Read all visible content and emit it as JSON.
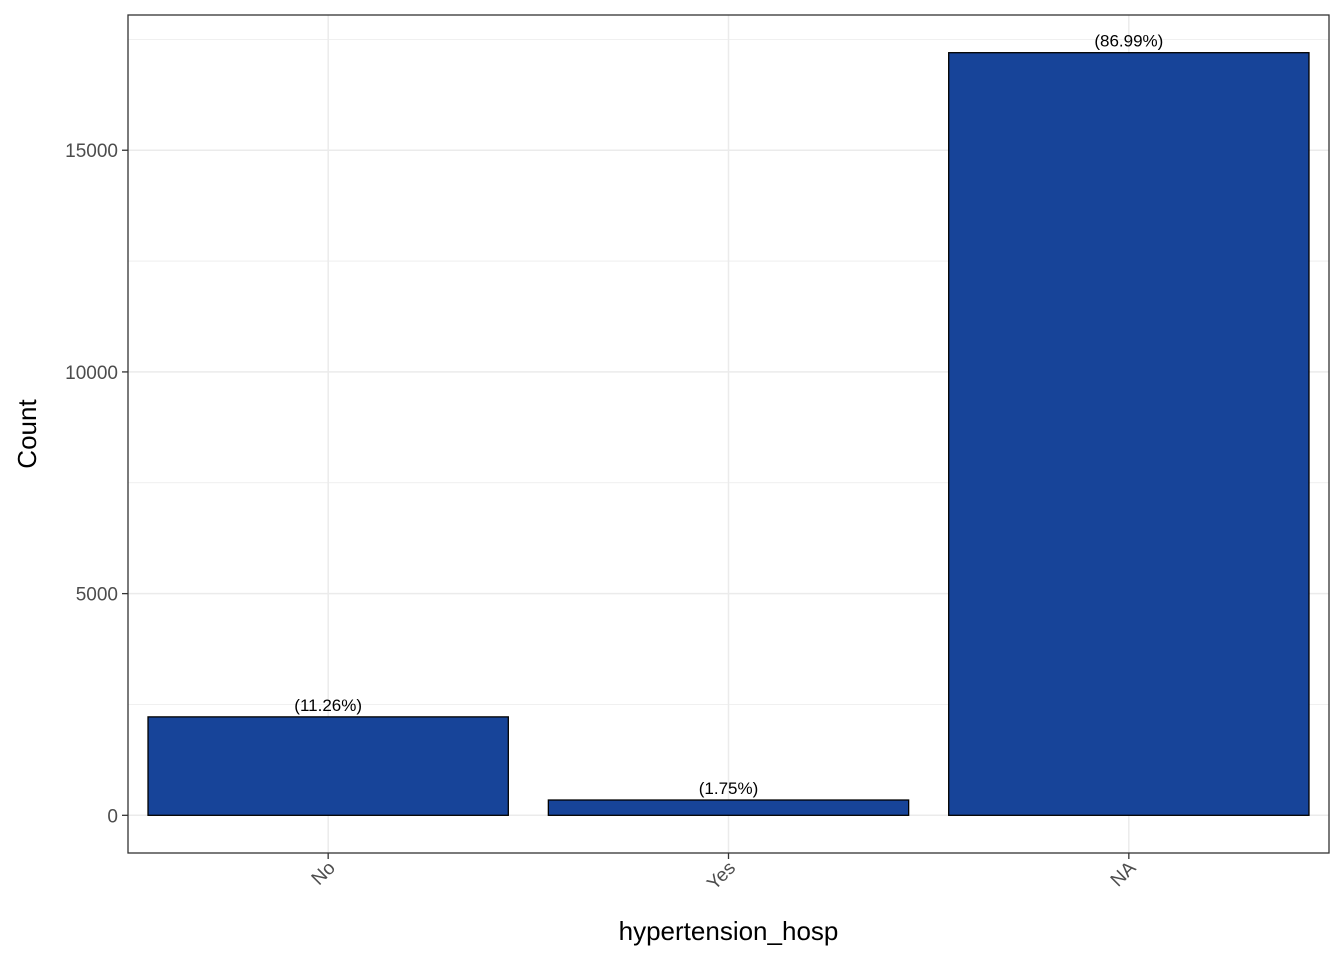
{
  "chart_data": {
    "type": "bar",
    "title": "",
    "xlabel": "hypertension_hosp",
    "ylabel": "Count",
    "categories": [
      "No",
      "Yes",
      "NA"
    ],
    "values": [
      2220,
      345,
      17200
    ],
    "data_labels": [
      "(11.26%)",
      "(1.75%)",
      "(86.99%)"
    ],
    "ylim": [
      -850,
      18050
    ],
    "yticks": [
      0,
      5000,
      10000,
      15000
    ],
    "ytick_labels": [
      "0",
      "5000",
      "10000",
      "15000"
    ],
    "grid": true,
    "legend": "none",
    "colors": {
      "bar_fill": "#174499",
      "bar_stroke": "#000000",
      "grid": "#ebebeb",
      "panel_border": "#333333"
    }
  }
}
